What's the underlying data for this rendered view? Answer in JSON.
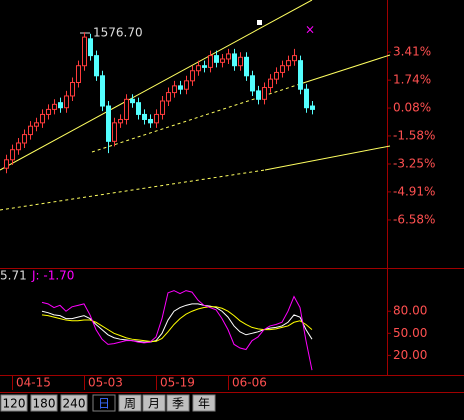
{
  "chart_data": [
    {
      "type": "candlestick",
      "annotation": "1576.70",
      "categories": [
        null,
        "04-15",
        null,
        null,
        null,
        null,
        null,
        null,
        null,
        null,
        null,
        null,
        null,
        "05-03",
        null,
        null,
        null,
        null,
        null,
        null,
        null,
        null,
        null,
        null,
        null,
        "05-19",
        null,
        null,
        null,
        null,
        null,
        null,
        null,
        null,
        null,
        null,
        null,
        "06-06",
        null,
        null,
        null,
        null,
        null,
        null,
        null,
        null,
        null,
        null,
        null,
        null,
        null,
        null
      ],
      "open": [
        -3.5,
        -3.0,
        -2.4,
        -2.0,
        -1.5,
        -1.0,
        -0.8,
        -0.3,
        0.0,
        0.4,
        0.1,
        0.8,
        1.6,
        2.6,
        4.2,
        3.2,
        2.0,
        0.2,
        -1.9,
        -0.8,
        -0.6,
        0.6,
        0.4,
        -0.3,
        -0.6,
        -0.8,
        -0.3,
        0.5,
        1.0,
        1.4,
        1.2,
        1.7,
        2.3,
        2.6,
        2.5,
        3.2,
        2.8,
        3.0,
        3.3,
        2.6,
        3.1,
        2.0,
        1.1,
        0.6,
        1.3,
        1.8,
        2.2,
        2.6,
        2.9,
        2.9,
        1.2,
        0.2
      ],
      "high": [
        -2.7,
        -2.1,
        -1.7,
        -1.2,
        -0.7,
        -0.5,
        0.0,
        0.3,
        0.6,
        0.7,
        1.1,
        1.9,
        2.9,
        4.6,
        4.5,
        3.5,
        2.3,
        0.5,
        -0.5,
        -0.3,
        0.9,
        0.9,
        0.7,
        0.0,
        -0.3,
        0.0,
        0.8,
        1.3,
        1.7,
        1.7,
        2.0,
        2.6,
        2.9,
        2.9,
        3.5,
        3.5,
        3.3,
        3.6,
        3.6,
        3.4,
        3.4,
        2.3,
        1.4,
        1.6,
        2.1,
        2.5,
        2.9,
        3.2,
        3.6,
        3.2,
        1.5,
        0.5
      ],
      "low": [
        -3.8,
        -3.3,
        -2.7,
        -2.3,
        -1.8,
        -1.3,
        -1.1,
        -0.6,
        -0.3,
        -0.2,
        -0.2,
        0.5,
        1.3,
        2.3,
        2.9,
        1.7,
        -0.1,
        -2.6,
        -2.2,
        -1.1,
        -0.9,
        0.1,
        -0.6,
        -0.9,
        -1.1,
        -1.1,
        -0.6,
        0.2,
        0.7,
        0.9,
        0.9,
        1.4,
        2.0,
        2.2,
        2.2,
        2.5,
        2.5,
        2.7,
        2.3,
        2.3,
        1.7,
        0.8,
        0.3,
        0.3,
        1.0,
        1.5,
        1.9,
        2.3,
        2.6,
        0.9,
        -0.2,
        -0.3
      ],
      "close": [
        -3.0,
        -2.4,
        -2.0,
        -1.5,
        -1.0,
        -0.8,
        -0.3,
        0.0,
        0.3,
        0.1,
        0.8,
        1.6,
        2.6,
        4.3,
        3.2,
        2.0,
        0.2,
        -1.9,
        -0.8,
        -0.6,
        0.6,
        0.4,
        -0.3,
        -0.6,
        -0.8,
        -0.3,
        0.5,
        1.0,
        1.4,
        1.2,
        1.7,
        2.3,
        2.6,
        2.5,
        3.2,
        2.8,
        3.0,
        3.3,
        2.6,
        3.1,
        2.0,
        1.1,
        0.6,
        1.3,
        1.8,
        2.2,
        2.6,
        2.9,
        3.2,
        1.2,
        0.1,
        0.0
      ],
      "up_color": "#ff3c3c",
      "down_color": "#54ffff",
      "ylim": [
        -9.32,
        6.51
      ],
      "yticks": [
        {
          "value": 3.41,
          "label": "3.41%"
        },
        {
          "value": 1.74,
          "label": "1.74%"
        },
        {
          "value": 0.08,
          "label": "0.08%"
        },
        {
          "value": -1.58,
          "label": "-1.58%"
        },
        {
          "value": -3.25,
          "label": "-3.25%"
        },
        {
          "value": -4.91,
          "label": "-4.91%"
        },
        {
          "value": -6.58,
          "label": "-6.58%"
        }
      ]
    },
    {
      "type": "line",
      "header": [
        "5.71",
        "J: -1.70"
      ],
      "series": [
        {
          "color": "#ffffff",
          "values": [
            null,
            null,
            null,
            null,
            null,
            null,
            80,
            78,
            75,
            74,
            70,
            70,
            72,
            74,
            70,
            62,
            55,
            48,
            44,
            42,
            41,
            40,
            39,
            38,
            38,
            40,
            50,
            68,
            80,
            85,
            88,
            90,
            90,
            88,
            87,
            85,
            80,
            72,
            60,
            52,
            48,
            50,
            52,
            55,
            57,
            58,
            60,
            65,
            75,
            72,
            55,
            42
          ]
        },
        {
          "color": "#ffff00",
          "values": [
            null,
            null,
            null,
            null,
            null,
            null,
            75,
            74,
            72,
            70,
            68,
            67,
            67,
            68,
            68,
            65,
            60,
            55,
            50,
            47,
            44,
            42,
            41,
            40,
            39,
            39,
            43,
            52,
            62,
            70,
            76,
            80,
            83,
            85,
            86,
            86,
            84,
            80,
            74,
            67,
            62,
            58,
            56,
            55,
            55,
            56,
            58,
            60,
            65,
            67,
            62,
            55
          ]
        },
        {
          "color": "#ff00ff",
          "values": [
            null,
            null,
            null,
            null,
            null,
            null,
            92,
            90,
            85,
            88,
            80,
            86,
            88,
            90,
            75,
            55,
            42,
            35,
            36,
            38,
            40,
            40,
            38,
            37,
            38,
            45,
            70,
            105,
            108,
            104,
            108,
            106,
            95,
            88,
            85,
            82,
            70,
            55,
            35,
            30,
            28,
            40,
            45,
            55,
            60,
            62,
            65,
            80,
            100,
            85,
            40,
            0
          ]
        }
      ],
      "ylim": [
        -8,
        136
      ],
      "yticks": [
        {
          "value": 80,
          "label": "80.00"
        },
        {
          "value": 50,
          "label": "50.00"
        },
        {
          "value": 20,
          "label": "20.00"
        }
      ]
    }
  ],
  "toolbar": [
    "120",
    "180",
    "240",
    "日",
    "周",
    "月",
    "季",
    "年"
  ]
}
